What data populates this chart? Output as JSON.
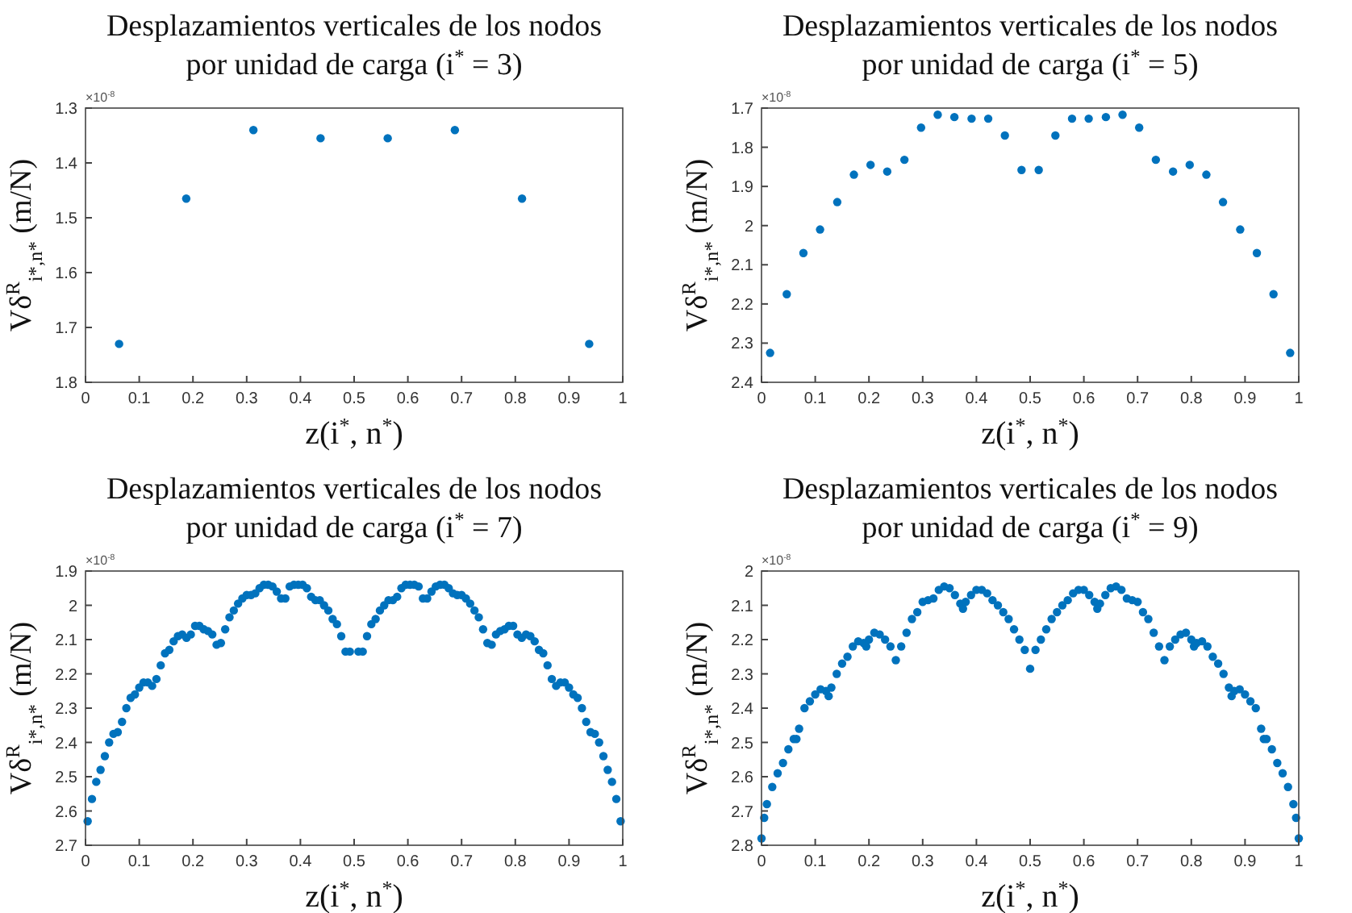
{
  "chart_data": [
    {
      "type": "scatter",
      "title": "Desplazamientos verticales de los nodos por unidad de carga (i$^{*}$ = 3)",
      "xlabel": "z(i$^{*}$, n$^{*}$)",
      "ylabel": "Vδ$^{R}$$_{i*,n*}$ (m/N)",
      "annotations": [
        "×10$^{-8}$"
      ],
      "marker": "circle",
      "color": "#0072bd",
      "x": [
        0.0625,
        0.1875,
        0.3125,
        0.4375,
        0.5625,
        0.6875,
        0.8125,
        0.9375
      ],
      "values": [
        1.73,
        1.465,
        1.34,
        1.355,
        1.355,
        1.34,
        1.465,
        1.73
      ],
      "xlim": [
        0,
        1
      ],
      "xticks": [
        0,
        0.1,
        0.2,
        0.3,
        0.4,
        0.5,
        0.6,
        0.7,
        0.8,
        0.9,
        1
      ],
      "ylim": [
        1.8,
        1.3
      ],
      "yticks": [
        1.3,
        1.4,
        1.5,
        1.6,
        1.7,
        1.8
      ]
    },
    {
      "type": "scatter",
      "title": "Desplazamientos verticales de los nodos por unidad de carga (i$^{*}$ = 5)",
      "xlabel": "z(i$^{*}$, n$^{*}$)",
      "ylabel": "Vδ$^{R}$$_{i*,n*}$ (m/N)",
      "annotations": [
        "×10$^{-8}$"
      ],
      "marker": "circle",
      "color": "#0072bd",
      "x": [
        0.016,
        0.047,
        0.078,
        0.109,
        0.141,
        0.172,
        0.203,
        0.234,
        0.266,
        0.297,
        0.328,
        0.359,
        0.391,
        0.422,
        0.453,
        0.484,
        0.516,
        0.547,
        0.578,
        0.609,
        0.641,
        0.672,
        0.703,
        0.734,
        0.766,
        0.797,
        0.828,
        0.859,
        0.891,
        0.922,
        0.953,
        0.984
      ],
      "values": [
        2.325,
        2.175,
        2.07,
        2.01,
        1.94,
        1.87,
        1.845,
        1.862,
        1.832,
        1.75,
        1.717,
        1.723,
        1.727,
        1.727,
        1.77,
        1.858,
        1.858,
        1.77,
        1.727,
        1.727,
        1.723,
        1.717,
        1.75,
        1.832,
        1.862,
        1.845,
        1.87,
        1.94,
        2.01,
        2.07,
        2.175,
        2.325
      ],
      "xlim": [
        0,
        1
      ],
      "xticks": [
        0,
        0.1,
        0.2,
        0.3,
        0.4,
        0.5,
        0.6,
        0.7,
        0.8,
        0.9,
        1
      ],
      "ylim": [
        2.4,
        1.7
      ],
      "yticks": [
        1.7,
        1.8,
        1.9,
        2,
        2.1,
        2.2,
        2.3,
        2.4
      ]
    },
    {
      "type": "scatter",
      "title": "Desplazamientos verticales de los nodos por unidad de carga (i$^{*}$ = 7)",
      "xlabel": "z(i$^{*}$, n$^{*}$)",
      "ylabel": "Vδ$^{R}$$_{i*,n*}$ (m/N)",
      "annotations": [
        "×10$^{-8}$"
      ],
      "marker": "circle",
      "color": "#0072bd",
      "x": [
        0.004,
        0.012,
        0.02,
        0.028,
        0.036,
        0.044,
        0.052,
        0.06,
        0.068,
        0.076,
        0.084,
        0.092,
        0.1,
        0.108,
        0.116,
        0.124,
        0.132,
        0.14,
        0.148,
        0.156,
        0.164,
        0.172,
        0.18,
        0.188,
        0.196,
        0.204,
        0.212,
        0.22,
        0.228,
        0.236,
        0.244,
        0.252,
        0.26,
        0.268,
        0.276,
        0.284,
        0.292,
        0.3,
        0.308,
        0.316,
        0.324,
        0.332,
        0.34,
        0.348,
        0.356,
        0.364,
        0.372,
        0.38,
        0.388,
        0.396,
        0.404,
        0.412,
        0.42,
        0.428,
        0.436,
        0.444,
        0.452,
        0.46,
        0.468,
        0.476,
        0.484,
        0.492,
        0.508,
        0.516,
        0.524,
        0.532,
        0.54,
        0.548,
        0.556,
        0.564,
        0.572,
        0.58,
        0.588,
        0.596,
        0.604,
        0.612,
        0.62,
        0.628,
        0.636,
        0.644,
        0.652,
        0.66,
        0.668,
        0.676,
        0.684,
        0.692,
        0.7,
        0.708,
        0.716,
        0.724,
        0.732,
        0.74,
        0.748,
        0.756,
        0.764,
        0.772,
        0.78,
        0.788,
        0.796,
        0.804,
        0.812,
        0.82,
        0.828,
        0.836,
        0.844,
        0.852,
        0.86,
        0.868,
        0.876,
        0.884,
        0.892,
        0.9,
        0.908,
        0.916,
        0.924,
        0.932,
        0.94,
        0.948,
        0.956,
        0.964,
        0.972,
        0.98,
        0.988,
        0.996
      ],
      "values": [
        2.63,
        2.565,
        2.515,
        2.48,
        2.44,
        2.4,
        2.375,
        2.37,
        2.34,
        2.3,
        2.27,
        2.26,
        2.24,
        2.225,
        2.225,
        2.235,
        2.215,
        2.175,
        2.14,
        2.13,
        2.105,
        2.09,
        2.085,
        2.095,
        2.085,
        2.06,
        2.06,
        2.07,
        2.075,
        2.085,
        2.115,
        2.11,
        2.07,
        2.035,
        2.015,
        1.995,
        1.98,
        1.97,
        1.97,
        1.965,
        1.95,
        1.94,
        1.94,
        1.945,
        1.96,
        1.98,
        1.98,
        1.945,
        1.94,
        1.94,
        1.94,
        1.95,
        1.975,
        1.985,
        1.985,
        2,
        2.015,
        2.04,
        2.055,
        2.09,
        2.135,
        2.135,
        2.135,
        2.135,
        2.09,
        2.055,
        2.04,
        2.015,
        2,
        1.985,
        1.985,
        1.975,
        1.95,
        1.94,
        1.94,
        1.94,
        1.945,
        1.98,
        1.98,
        1.96,
        1.945,
        1.94,
        1.94,
        1.95,
        1.965,
        1.97,
        1.97,
        1.98,
        1.995,
        2.015,
        2.035,
        2.07,
        2.11,
        2.115,
        2.085,
        2.075,
        2.07,
        2.06,
        2.06,
        2.085,
        2.095,
        2.085,
        2.09,
        2.105,
        2.13,
        2.14,
        2.175,
        2.215,
        2.235,
        2.225,
        2.225,
        2.24,
        2.26,
        2.27,
        2.3,
        2.34,
        2.37,
        2.375,
        2.4,
        2.44,
        2.48,
        2.515,
        2.565,
        2.63
      ],
      "xlim": [
        0,
        1
      ],
      "xticks": [
        0,
        0.1,
        0.2,
        0.3,
        0.4,
        0.5,
        0.6,
        0.7,
        0.8,
        0.9,
        1
      ],
      "ylim": [
        2.7,
        1.9
      ],
      "yticks": [
        1.9,
        2,
        2.1,
        2.2,
        2.3,
        2.4,
        2.5,
        2.6,
        2.7
      ]
    },
    {
      "type": "scatter",
      "title": "Desplazamientos verticales de los nodos por unidad de carga (i$^{*}$ = 9)",
      "xlabel": "z(i$^{*}$, n$^{*}$)",
      "ylabel": "Vδ$^{R}$$_{i*,n*}$ (m/N)",
      "annotations": [
        "×10$^{-8}$"
      ],
      "marker": "circle",
      "color": "#0072bd",
      "x": [
        0,
        0.005,
        0.01,
        0.02,
        0.03,
        0.04,
        0.05,
        0.06,
        0.065,
        0.07,
        0.08,
        0.09,
        0.1,
        0.11,
        0.12,
        0.125,
        0.13,
        0.14,
        0.15,
        0.16,
        0.17,
        0.18,
        0.19,
        0.195,
        0.2,
        0.21,
        0.22,
        0.23,
        0.24,
        0.25,
        0.26,
        0.27,
        0.28,
        0.29,
        0.3,
        0.31,
        0.32,
        0.33,
        0.34,
        0.35,
        0.36,
        0.37,
        0.375,
        0.38,
        0.39,
        0.4,
        0.41,
        0.42,
        0.43,
        0.44,
        0.45,
        0.46,
        0.47,
        0.48,
        0.49,
        0.5,
        0.51,
        0.52,
        0.53,
        0.54,
        0.55,
        0.56,
        0.57,
        0.58,
        0.59,
        0.6,
        0.61,
        0.62,
        0.625,
        0.63,
        0.64,
        0.65,
        0.66,
        0.67,
        0.68,
        0.69,
        0.7,
        0.71,
        0.72,
        0.73,
        0.74,
        0.75,
        0.76,
        0.77,
        0.78,
        0.79,
        0.8,
        0.805,
        0.81,
        0.82,
        0.83,
        0.84,
        0.85,
        0.86,
        0.87,
        0.875,
        0.88,
        0.89,
        0.9,
        0.91,
        0.92,
        0.93,
        0.935,
        0.94,
        0.95,
        0.96,
        0.97,
        0.98,
        0.99,
        0.995,
        1
      ],
      "values": [
        2.78,
        2.72,
        2.68,
        2.63,
        2.59,
        2.56,
        2.52,
        2.49,
        2.49,
        2.46,
        2.4,
        2.38,
        2.36,
        2.345,
        2.35,
        2.365,
        2.34,
        2.3,
        2.27,
        2.25,
        2.22,
        2.205,
        2.21,
        2.22,
        2.2,
        2.18,
        2.185,
        2.2,
        2.22,
        2.26,
        2.22,
        2.18,
        2.14,
        2.12,
        2.09,
        2.085,
        2.08,
        2.055,
        2.045,
        2.05,
        2.07,
        2.095,
        2.11,
        2.09,
        2.07,
        2.055,
        2.055,
        2.065,
        2.085,
        2.1,
        2.12,
        2.14,
        2.17,
        2.2,
        2.23,
        2.285,
        2.23,
        2.2,
        2.17,
        2.14,
        2.12,
        2.1,
        2.085,
        2.065,
        2.055,
        2.055,
        2.07,
        2.09,
        2.11,
        2.095,
        2.07,
        2.05,
        2.045,
        2.055,
        2.08,
        2.085,
        2.09,
        2.12,
        2.14,
        2.18,
        2.22,
        2.26,
        2.22,
        2.2,
        2.185,
        2.18,
        2.2,
        2.22,
        2.21,
        2.205,
        2.22,
        2.25,
        2.27,
        2.3,
        2.34,
        2.365,
        2.35,
        2.345,
        2.36,
        2.38,
        2.4,
        2.46,
        2.49,
        2.49,
        2.52,
        2.56,
        2.59,
        2.63,
        2.68,
        2.72,
        2.78
      ],
      "xlim": [
        0,
        1
      ],
      "xticks": [
        0,
        0.1,
        0.2,
        0.3,
        0.4,
        0.5,
        0.6,
        0.7,
        0.8,
        0.9,
        1
      ],
      "ylim": [
        2.8,
        2
      ],
      "yticks": [
        2,
        2.1,
        2.2,
        2.3,
        2.4,
        2.5,
        2.6,
        2.7,
        2.8
      ]
    }
  ]
}
